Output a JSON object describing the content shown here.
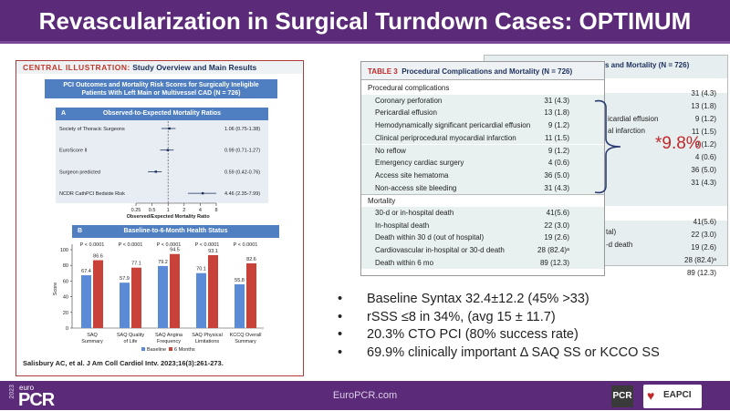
{
  "title": "Revascularization in Surgical Turndown Cases: OPTIMUM",
  "illustration": {
    "label": "CENTRAL ILLUSTRATION:",
    "title": "Study Overview and Main Results",
    "banner_line1": "PCI Outcomes and Mortality Risk Scores for Surgically Ineligible",
    "banner_line2": "Patients With Left Main or Multivessel CAD (N = 726)",
    "citation": "Salisbury AC, et al. J Am Coll Cardiol Intv. 2023;16(3):261-273."
  },
  "chart_data": [
    {
      "type": "forest",
      "panel": "A",
      "title": "Observed-to-Expected Mortality Ratios",
      "xlabel": "Observed/Expected Mortality Ratio",
      "xscale": "log",
      "xlim": [
        0.25,
        8
      ],
      "xticks": [
        "0.25",
        "0.5",
        "1",
        "2",
        "4",
        "8"
      ],
      "rows": [
        {
          "label": "Society of Thoracic Surgeons",
          "estimate": 1.06,
          "low": 0.75,
          "high": 1.38,
          "text": "1.06 (0.75-1.38)"
        },
        {
          "label": "EuroScore II",
          "estimate": 0.99,
          "low": 0.71,
          "high": 1.27,
          "text": "0.99 (0.71-1.27)"
        },
        {
          "label": "Surgeon predicted",
          "estimate": 0.59,
          "low": 0.42,
          "high": 0.76,
          "text": "0.59 (0.42-0.76)"
        },
        {
          "label": "NCDR CathPCI Bedside Risk",
          "estimate": 4.46,
          "low": 2.35,
          "high": 7.99,
          "text": "4.46 (2.35-7.99)"
        }
      ]
    },
    {
      "type": "bar",
      "panel": "B",
      "title": "Baseline-to-6-Month Health Status",
      "ylabel": "Score",
      "ylim": [
        0,
        100
      ],
      "yticks": [
        "0",
        "20",
        "40",
        "60",
        "80",
        "100"
      ],
      "legend": "bottom",
      "categories": [
        [
          "SAQ",
          "Summary"
        ],
        [
          "SAQ Quality",
          "of Life"
        ],
        [
          "SAQ Angina",
          "Frequency"
        ],
        [
          "SAQ Physical",
          "Limitations"
        ],
        [
          "KCCQ Overall",
          "Summary"
        ]
      ],
      "pvalues": [
        "P < 0.0001",
        "P < 0.0001",
        "P < 0.0001",
        "P < 0.0001",
        "P < 0.0001"
      ],
      "series": [
        {
          "name": "Baseline",
          "color": "#5b8bd6",
          "values": [
            67.4,
            57.9,
            79.2,
            70.1,
            55.8
          ]
        },
        {
          "name": "6 Months",
          "color": "#c8423a",
          "values": [
            86.6,
            77.1,
            94.5,
            93.1,
            82.6
          ]
        }
      ]
    }
  ],
  "table": {
    "label": "TABLE 3",
    "title": "Procedural Complications and Mortality (N = 726)",
    "rows": [
      {
        "section": "Procedural complications"
      },
      {
        "label": "Coronary perforation",
        "value": "31 (4.3)"
      },
      {
        "label": "Pericardial effusion",
        "value": "13 (1.8)"
      },
      {
        "label": "Hemodynamically significant pericardial effusion",
        "value": "9 (1.2)"
      },
      {
        "label": "Clinical periprocedural myocardial infarction",
        "value": "11 (1.5)"
      },
      {
        "label": "No reflow",
        "value": "9 (1.2)"
      },
      {
        "label": "Emergency cardiac surgery",
        "value": "4 (0.6)"
      },
      {
        "label": "Access site hematoma",
        "value": "36 (5.0)"
      },
      {
        "label": "Non-access site bleeding",
        "value": "31 (4.3)"
      },
      {
        "section": "Mortality"
      },
      {
        "label": "30-d or in-hospital death",
        "value": "41(5.6)"
      },
      {
        "label": "In-hospital death",
        "value": "22 (3.0)"
      },
      {
        "label": "Death within 30 d (out of hospital)",
        "value": "19 (2.6)"
      },
      {
        "label": "Cardiovascular in-hospital or 30-d death",
        "value": "28 (82.4)ᵃ"
      },
      {
        "label": "Death within 6 mo",
        "value": "89 (12.3)"
      }
    ],
    "bg_title": "ions and Mortality (N = 726)",
    "bg_fragments": [
      "icardial effusion",
      "al infarction",
      "tal)",
      "-d death"
    ],
    "bg_values": [
      "31 (4.3)",
      "13 (1.8)",
      "9 (1.2)",
      "11 (1.5)",
      "9 (1.2)",
      "4 (0.6)",
      "36 (5.0)",
      "31 (4.3)",
      "41(5.6)",
      "22 (3.0)",
      "19 (2.6)",
      "28 (82.4)ᵃ",
      "89 (12.3)"
    ]
  },
  "annotation": "*9.8%",
  "bullets": [
    "Baseline Syntax 32.4±12.2 (45% >33)",
    "rSSS ≤8 in 34%, (avg 15 ± 11.7)",
    "20.3% CTO PCI (80% success rate)",
    "69.9% clinically important Δ SAQ SS or KCCO SS"
  ],
  "footer": {
    "year": "2023",
    "logo_top": "euro",
    "logo": "PCR",
    "url": "EuroPCR.com",
    "pcr": "PCR",
    "eapci": "EAPCI"
  },
  "colors": {
    "purple": "#5b2a78",
    "baseline": "#5b8bd6",
    "six_months": "#c8423a",
    "annotation": "#c0282a"
  }
}
